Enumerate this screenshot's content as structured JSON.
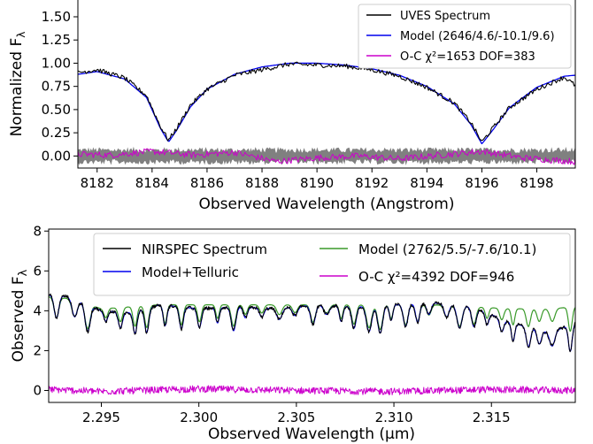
{
  "chart_data": [
    {
      "type": "line",
      "xlabel": "Observed Wavelength (Angstrom)",
      "ylabel": "Normalized F",
      "ylabel_sub": "λ",
      "xlim": [
        8181.3,
        8199.4
      ],
      "ylim": [
        -0.13,
        1.7
      ],
      "xticks": [
        "8182",
        "8184",
        "8186",
        "8188",
        "8190",
        "8192",
        "8194",
        "8196",
        "8198"
      ],
      "xtick_values": [
        8182,
        8184,
        8186,
        8188,
        8190,
        8192,
        8194,
        8196,
        8198
      ],
      "yticks": [
        "0.00",
        "0.25",
        "0.50",
        "0.75",
        "1.00",
        "1.25",
        "1.50"
      ],
      "ytick_values": [
        0,
        0.25,
        0.5,
        0.75,
        1.0,
        1.25,
        1.5
      ],
      "grid": false,
      "legend_position": "top-right",
      "colors": {
        "spectrum": "#000000",
        "model": "#0000ee",
        "residual": "#cc00cc",
        "uncertainty": "#808080"
      },
      "series": [
        {
          "name": "UVES Spectrum",
          "color": "#000000",
          "x": [
            8181.3,
            8182.0,
            8183.0,
            8183.8,
            8184.3,
            8184.6,
            8184.9,
            8185.4,
            8186.0,
            8187.0,
            8188.0,
            8189.0,
            8190.0,
            8191.0,
            8192.0,
            8193.0,
            8194.0,
            8195.0,
            8195.6,
            8196.0,
            8196.4,
            8197.0,
            8198.0,
            8199.0,
            8199.4
          ],
          "y": [
            0.9,
            0.93,
            0.84,
            0.65,
            0.32,
            0.17,
            0.3,
            0.55,
            0.72,
            0.87,
            0.93,
            0.99,
            0.98,
            0.97,
            0.93,
            0.86,
            0.74,
            0.57,
            0.36,
            0.15,
            0.3,
            0.52,
            0.72,
            0.85,
            0.76
          ]
        },
        {
          "name": "Model (2646/4.6/-10.1/9.6)",
          "color": "#0000ee",
          "x": [
            8181.3,
            8182.0,
            8183.0,
            8183.8,
            8184.3,
            8184.6,
            8184.9,
            8185.4,
            8186.0,
            8187.0,
            8188.0,
            8189.0,
            8190.0,
            8191.0,
            8192.0,
            8193.0,
            8194.0,
            8195.0,
            8195.6,
            8196.0,
            8196.4,
            8197.0,
            8198.0,
            8199.0,
            8199.4
          ],
          "y": [
            0.88,
            0.91,
            0.83,
            0.63,
            0.3,
            0.15,
            0.28,
            0.53,
            0.72,
            0.88,
            0.96,
            1.0,
            1.0,
            0.98,
            0.94,
            0.87,
            0.75,
            0.56,
            0.34,
            0.13,
            0.28,
            0.52,
            0.74,
            0.86,
            0.87
          ]
        },
        {
          "name": "O-C χ²=1653 DOF=383",
          "color": "#cc00cc",
          "x": [
            8181.3,
            8182.5,
            8184.0,
            8185.5,
            8187.0,
            8188.5,
            8190.0,
            8191.5,
            8193.0,
            8194.5,
            8196.0,
            8197.5,
            8199.4
          ],
          "y": [
            0.02,
            0.01,
            0.05,
            0.01,
            0.04,
            -0.06,
            -0.02,
            0.0,
            -0.03,
            0.01,
            0.05,
            -0.02,
            -0.06
          ]
        }
      ],
      "uncertainty_band": {
        "color": "#808080",
        "lo": -0.06,
        "hi": 0.06
      }
    },
    {
      "type": "line",
      "xlabel": "Observed Wavelength (μm)",
      "ylabel": "Observed F",
      "ylabel_sub": "λ",
      "xlim": [
        2.2923,
        2.3193
      ],
      "ylim": [
        -0.6,
        8.1
      ],
      "xticks": [
        "2.295",
        "2.300",
        "2.305",
        "2.310",
        "2.315"
      ],
      "xtick_values": [
        2.295,
        2.3,
        2.305,
        2.31,
        2.315
      ],
      "yticks": [
        "0",
        "2",
        "4",
        "6",
        "8"
      ],
      "ytick_values": [
        0,
        2,
        4,
        6,
        8
      ],
      "grid": false,
      "legend_position": "top",
      "series": [
        {
          "name": "NIRSPEC Spectrum",
          "color": "#000000",
          "x": [
            2.2923,
            2.2935,
            2.295,
            2.2965,
            2.298,
            2.3,
            2.302,
            2.304,
            2.306,
            2.308,
            2.31,
            2.312,
            2.314,
            2.316,
            2.318,
            2.3193
          ],
          "y": [
            4.3,
            4.2,
            3.5,
            3.4,
            3.8,
            3.6,
            3.7,
            3.6,
            3.8,
            3.7,
            3.8,
            3.9,
            3.7,
            3.0,
            2.6,
            2.9
          ]
        },
        {
          "name": "Model (2762/5.5/-7.6/10.1)",
          "color": "#3a9a2a",
          "x": [
            2.2923,
            2.2935,
            2.295,
            2.2965,
            2.298,
            2.3,
            2.302,
            2.304,
            2.306,
            2.308,
            2.31,
            2.312,
            2.314,
            2.316,
            2.318,
            2.3193
          ],
          "y": [
            4.4,
            4.3,
            3.8,
            3.9,
            4.0,
            4.0,
            4.0,
            4.0,
            4.0,
            4.0,
            4.0,
            4.0,
            3.9,
            3.8,
            3.8,
            3.9
          ]
        },
        {
          "name": "Model+Telluric",
          "color": "#0000ee",
          "x": [
            2.2923,
            2.2935,
            2.295,
            2.2965,
            2.298,
            2.3,
            2.302,
            2.304,
            2.306,
            2.308,
            2.31,
            2.312,
            2.314,
            2.316,
            2.318,
            2.3193
          ],
          "y": [
            4.3,
            4.2,
            3.5,
            3.4,
            3.8,
            3.6,
            3.7,
            3.6,
            3.8,
            3.7,
            3.8,
            3.9,
            3.7,
            2.9,
            2.4,
            2.9
          ]
        },
        {
          "name": "O-C χ²=4392 DOF=946",
          "color": "#cc00cc",
          "x": [
            2.2923,
            2.295,
            2.3,
            2.305,
            2.31,
            2.315,
            2.3193
          ],
          "y": [
            0.05,
            -0.05,
            0.08,
            0.0,
            -0.05,
            0.05,
            0.0
          ]
        }
      ]
    }
  ]
}
